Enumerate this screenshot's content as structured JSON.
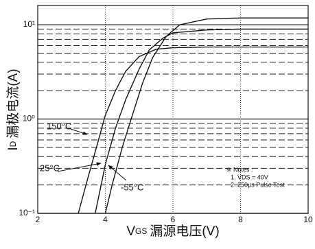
{
  "chart_data": {
    "type": "line",
    "x_label_symbol": "V",
    "x_label_sub": "GS",
    "x_label_text": "漏源电压(V)",
    "y_label_symbol": "I",
    "y_label_sub": "D",
    "y_label_text": "漏极电流(A)",
    "log_y": true,
    "xlim": [
      2,
      10
    ],
    "xticks": [
      2,
      4,
      6,
      8,
      10
    ],
    "ylim": [
      0.1,
      16
    ],
    "yticks": [
      {
        "value": 0.1,
        "label": "10⁻¹"
      },
      {
        "value": 1,
        "label": "10⁰"
      },
      {
        "value": 10,
        "label": "10¹"
      }
    ],
    "minor_yticks": [
      0.2,
      0.3,
      0.4,
      0.5,
      0.6,
      0.7,
      0.8,
      0.9,
      2,
      3,
      4,
      5,
      6,
      7,
      8,
      9
    ],
    "grid": true,
    "notes": [
      "※ Notes :",
      "1. VDS = 40V",
      "2. 250μs Pulse Test"
    ],
    "series": [
      {
        "name": "150°C",
        "color": "#111111",
        "x": [
          3.2,
          3.5,
          3.8,
          4.0,
          4.3,
          4.6,
          5.0,
          5.5,
          6,
          7,
          8,
          10
        ],
        "values": [
          0.1,
          0.25,
          0.6,
          1.1,
          2.0,
          3.2,
          4.6,
          5.5,
          5.7,
          5.8,
          5.8,
          5.8
        ]
      },
      {
        "name": "25°C",
        "color": "#111111",
        "x": [
          3.7,
          3.9,
          4.0,
          4.3,
          4.6,
          5.0,
          5.3,
          5.7,
          6,
          7,
          8,
          10
        ],
        "values": [
          0.1,
          0.22,
          0.33,
          0.8,
          1.6,
          3.4,
          5.4,
          7.2,
          8.2,
          8.8,
          9,
          9
        ]
      },
      {
        "name": "-55°C",
        "color": "#111111",
        "x": [
          4.0,
          4.2,
          4.5,
          4.8,
          5.1,
          5.4,
          5.8,
          6.2,
          7,
          8,
          10
        ],
        "values": [
          0.1,
          0.2,
          0.5,
          1.1,
          2.4,
          4.5,
          7.5,
          10,
          11.5,
          11.8,
          11.8
        ]
      }
    ]
  }
}
